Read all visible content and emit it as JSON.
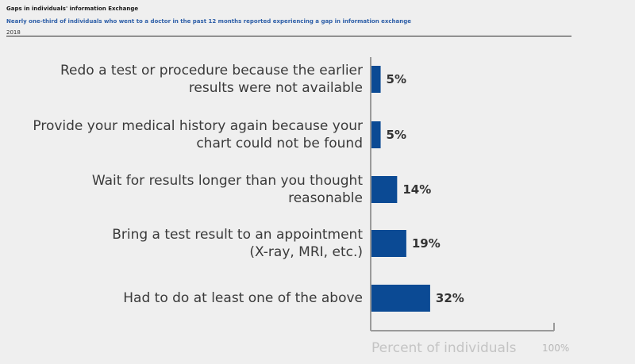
{
  "chart_data": {
    "type": "bar",
    "orientation": "horizontal",
    "title": "Gaps in individuals' information Exchange",
    "subtitle": "Nearly one-third of individuals who went to a doctor in the past 12 months reported experiencing a gap in information exchange",
    "year": "2018",
    "categories": [
      [
        "Redo a test or procedure because the earlier",
        "results were not available"
      ],
      [
        "Provide your medical history again because your",
        "chart could not be found"
      ],
      [
        "Wait for results longer than you thought reasonable"
      ],
      [
        "Bring a test result to an appointment",
        "(X-ray, MRI, etc.)"
      ],
      [
        "Had to do at least one of the above"
      ]
    ],
    "values": [
      5,
      5,
      14,
      19,
      32
    ],
    "value_labels": [
      "5%",
      "5%",
      "14%",
      "19%",
      "32%"
    ],
    "xlabel": "Percent of individuals",
    "xmax_label": "100%",
    "xlim": [
      0,
      100
    ],
    "bar_color": "#0b4a94"
  }
}
